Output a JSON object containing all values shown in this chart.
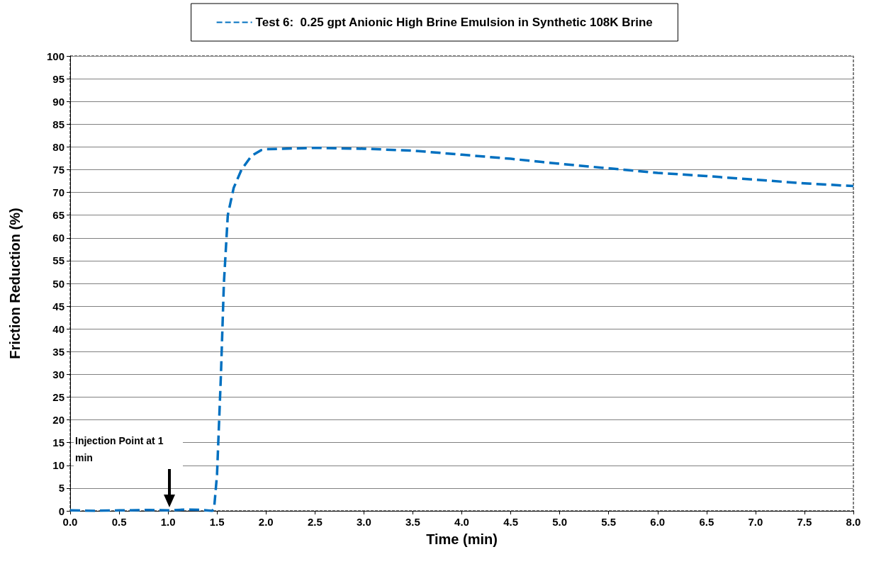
{
  "chart_data": {
    "type": "line",
    "xlabel": "Time (min)",
    "ylabel": "Friction Reduction (%)",
    "series": [
      {
        "name": "Test 6:  0.25 gpt Anionic High Brine Emulsion in Synthetic 108K Brine",
        "color": "#0070c0",
        "line_style": "dashed",
        "x": [
          0,
          0.25,
          0.5,
          0.8,
          1.0,
          1.2,
          1.35,
          1.45,
          1.47,
          1.5,
          1.54,
          1.57,
          1.61,
          1.67,
          1.75,
          1.85,
          1.95,
          2.0,
          2.5,
          3.0,
          3.5,
          4.0,
          4.5,
          5.0,
          5.5,
          6.0,
          6.5,
          7.0,
          7.5,
          8.0
        ],
        "values": [
          0.1,
          0,
          0.1,
          0.2,
          0.1,
          0.3,
          0.2,
          0,
          0.5,
          8,
          30,
          50,
          65,
          71,
          75,
          78,
          79.3,
          79.5,
          79.8,
          79.6,
          79.2,
          78.3,
          77.4,
          76.3,
          75.3,
          74.3,
          73.6,
          72.8,
          72,
          71.4
        ]
      }
    ],
    "xlim": [
      0,
      8
    ],
    "xticks": [
      {
        "value": 0,
        "label": "0.0"
      },
      {
        "value": 0.5,
        "label": "0.5"
      },
      {
        "value": 1,
        "label": "1.0"
      },
      {
        "value": 1.5,
        "label": "1.5"
      },
      {
        "value": 2,
        "label": "2.0"
      },
      {
        "value": 2.5,
        "label": "2.5"
      },
      {
        "value": 3,
        "label": "3.0"
      },
      {
        "value": 3.5,
        "label": "3.5"
      },
      {
        "value": 4,
        "label": "4.0"
      },
      {
        "value": 4.5,
        "label": "4.5"
      },
      {
        "value": 5,
        "label": "5.0"
      },
      {
        "value": 5.5,
        "label": "5.5"
      },
      {
        "value": 6,
        "label": "6.0"
      },
      {
        "value": 6.5,
        "label": "6.5"
      },
      {
        "value": 7,
        "label": "7.0"
      },
      {
        "value": 7.5,
        "label": "7.5"
      },
      {
        "value": 8,
        "label": "8.0"
      }
    ],
    "ylim": [
      0,
      100
    ],
    "yticks": [
      0,
      5,
      10,
      15,
      20,
      25,
      30,
      35,
      40,
      45,
      50,
      55,
      60,
      65,
      70,
      75,
      80,
      85,
      90,
      95,
      100
    ],
    "grid": "y",
    "legend": "top",
    "marker": "none",
    "annotations": [
      "Injection Point at 1 min"
    ]
  }
}
